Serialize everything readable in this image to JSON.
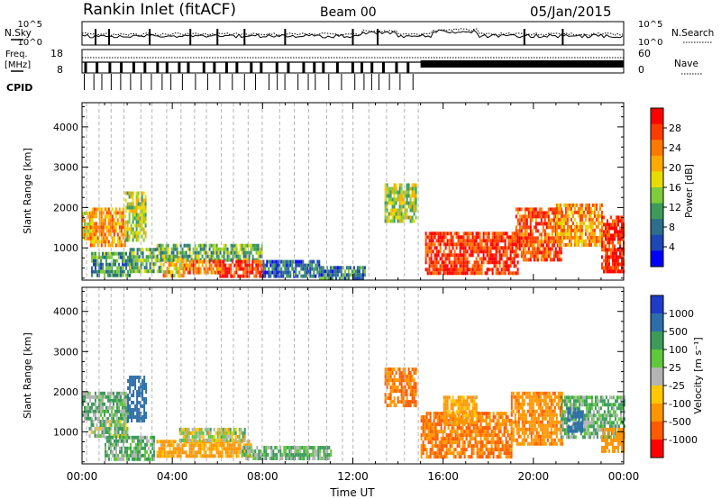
{
  "header": {
    "station": "Rankin Inlet (fitACF)",
    "beam": "Beam 00",
    "date": "05/Jan/2015"
  },
  "strips": {
    "nsky_label": "N.Sky",
    "nsearch_label": "N.Search",
    "noise_ticks": [
      "10^5",
      "10^0"
    ],
    "freq_label_1": "Freq.",
    "freq_label_2": "[MHz]",
    "freq_ticks": [
      "18",
      "8"
    ],
    "nave_label": "Nave",
    "nave_ticks": [
      "60",
      "0"
    ],
    "cpid_label": "CPID"
  },
  "chart_data": [
    {
      "type": "heatmap",
      "name": "power",
      "ylabel": "Slant Range [km]",
      "ylim": [
        200,
        4600
      ],
      "yticks": [
        "1000",
        "2000",
        "3000",
        "4000"
      ],
      "colorbar": {
        "label": "Power [dB]",
        "ticks": [
          "28",
          "24",
          "20",
          "16",
          "12",
          "8",
          "4"
        ],
        "colors": [
          "#ff0000",
          "#ff3c00",
          "#ff7800",
          "#ffaa00",
          "#e6dc00",
          "#7ecb3c",
          "#3c9b5a",
          "#2d6e8c",
          "#1e46b4",
          "#0000ff"
        ]
      },
      "regions": [
        {
          "t": [
            0.0,
            0.35
          ],
          "r": [
            1200,
            1900
          ],
          "v": 20
        },
        {
          "t": [
            0.35,
            1.9
          ],
          "r": [
            1100,
            2000
          ],
          "v": 24
        },
        {
          "t": [
            0.4,
            2.2
          ],
          "r": [
            300,
            900
          ],
          "v": 12
        },
        {
          "t": [
            1.9,
            2.8
          ],
          "r": [
            1200,
            2400
          ],
          "v": 18
        },
        {
          "t": [
            2.1,
            3.5
          ],
          "r": [
            400,
            1000
          ],
          "v": 14
        },
        {
          "t": [
            3.5,
            4.5
          ],
          "r": [
            300,
            800
          ],
          "v": 22
        },
        {
          "t": [
            3.3,
            8.0
          ],
          "r": [
            700,
            1100
          ],
          "v": 14
        },
        {
          "t": [
            4.5,
            6.1
          ],
          "r": [
            350,
            700
          ],
          "v": 26
        },
        {
          "t": [
            6.0,
            8.0
          ],
          "r": [
            300,
            700
          ],
          "v": 30
        },
        {
          "t": [
            8.0,
            10.5
          ],
          "r": [
            300,
            700
          ],
          "v": 8
        },
        {
          "t": [
            10.5,
            12.5
          ],
          "r": [
            200,
            550
          ],
          "v": 10
        },
        {
          "t": [
            13.4,
            14.8
          ],
          "r": [
            1700,
            2600
          ],
          "v": 18
        },
        {
          "t": [
            15.2,
            19.3
          ],
          "r": [
            400,
            1400
          ],
          "v": 30
        },
        {
          "t": [
            19.2,
            21.2
          ],
          "r": [
            700,
            2000
          ],
          "v": 28
        },
        {
          "t": [
            21.0,
            23.0
          ],
          "r": [
            1100,
            2100
          ],
          "v": 24
        },
        {
          "t": [
            23.0,
            24.0
          ],
          "r": [
            400,
            1800
          ],
          "v": 30
        }
      ]
    },
    {
      "type": "heatmap",
      "name": "velocity",
      "ylabel": "Slant Range [km]",
      "xlabel": "Time UT",
      "ylim": [
        200,
        4600
      ],
      "yticks": [
        "1000",
        "2000",
        "3000",
        "4000"
      ],
      "xlim": [
        0,
        24
      ],
      "xticks": [
        "00:00",
        "04:00",
        "08:00",
        "12:00",
        "16:00",
        "20:00",
        "00:00"
      ],
      "colorbar": {
        "label": "Velocity [m s⁻¹]",
        "ticks": [
          "1000",
          "500",
          "100",
          "25",
          "-25",
          "-100",
          "-500",
          "-1000"
        ],
        "colors": [
          "#1e3cc8",
          "#2d6eaa",
          "#3c9b5a",
          "#5fc83c",
          "#b4b4b4",
          "#ffc800",
          "#ff9600",
          "#ff5a00",
          "#ff0000"
        ]
      },
      "regions": [
        {
          "t": [
            0.0,
            2.0
          ],
          "r": [
            1300,
            2000
          ],
          "v": 60
        },
        {
          "t": [
            0.3,
            2.0
          ],
          "r": [
            900,
            1300
          ],
          "v": 25
        },
        {
          "t": [
            2.0,
            2.8
          ],
          "r": [
            1300,
            2400
          ],
          "v": 400
        },
        {
          "t": [
            1.0,
            3.2
          ],
          "r": [
            300,
            900
          ],
          "v": 60
        },
        {
          "t": [
            3.3,
            7.5
          ],
          "r": [
            400,
            800
          ],
          "v": -100
        },
        {
          "t": [
            4.3,
            7.2
          ],
          "r": [
            800,
            1100
          ],
          "v": 0
        },
        {
          "t": [
            7.0,
            11.0
          ],
          "r": [
            300,
            650
          ],
          "v": 60
        },
        {
          "t": [
            13.4,
            14.8
          ],
          "r": [
            1700,
            2600
          ],
          "v": -300
        },
        {
          "t": [
            15.0,
            19.0
          ],
          "r": [
            400,
            1500
          ],
          "v": -300
        },
        {
          "t": [
            16.0,
            17.5
          ],
          "r": [
            1200,
            1900
          ],
          "v": -100
        },
        {
          "t": [
            19.0,
            21.3
          ],
          "r": [
            700,
            2000
          ],
          "v": -250
        },
        {
          "t": [
            21.2,
            24.0
          ],
          "r": [
            900,
            1900
          ],
          "v": 60
        },
        {
          "t": [
            21.5,
            22.2
          ],
          "r": [
            1000,
            1600
          ],
          "v": 500
        },
        {
          "t": [
            23.0,
            24.0
          ],
          "r": [
            500,
            1100
          ],
          "v": -150
        }
      ]
    }
  ]
}
